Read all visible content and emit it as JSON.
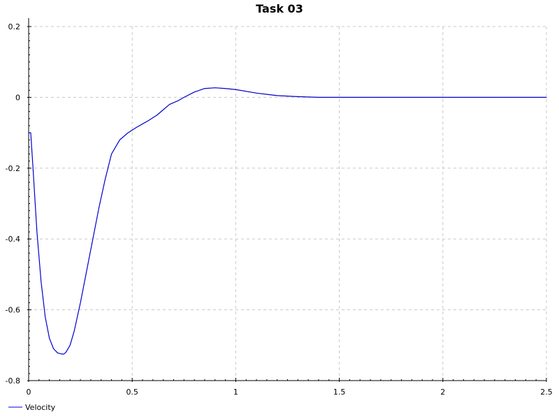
{
  "chart_data": {
    "type": "line",
    "title": "Task 03",
    "xlabel": "",
    "ylabel": "",
    "xlim": [
      0,
      2.5
    ],
    "ylim": [
      -0.8,
      0.2
    ],
    "x_ticks": [
      0,
      0.5,
      1,
      1.5,
      2,
      2.5
    ],
    "x_tick_labels": [
      "0",
      "0.5",
      "1",
      "1.5",
      "2",
      "2.5"
    ],
    "y_ticks": [
      -0.8,
      -0.6,
      -0.4,
      -0.2,
      0,
      0.2
    ],
    "y_tick_labels": [
      "-0.8",
      "-0.6",
      "-0.4",
      "-0.2",
      "0",
      "0.2"
    ],
    "grid": true,
    "legend_position": "bottom-left",
    "series": [
      {
        "name": "Velocity",
        "color": "#0000cc",
        "x": [
          0,
          0.01,
          0.02,
          0.04,
          0.06,
          0.08,
          0.1,
          0.12,
          0.14,
          0.16,
          0.17,
          0.18,
          0.2,
          0.22,
          0.25,
          0.28,
          0.31,
          0.34,
          0.37,
          0.4,
          0.44,
          0.48,
          0.52,
          0.55,
          0.58,
          0.62,
          0.65,
          0.68,
          0.72,
          0.75,
          0.8,
          0.85,
          0.9,
          0.95,
          1.0,
          1.1,
          1.2,
          1.3,
          1.4,
          1.5,
          1.6,
          1.8,
          2.0,
          2.2,
          2.4,
          2.5
        ],
        "y": [
          -0.1,
          -0.1,
          -0.19,
          -0.38,
          -0.52,
          -0.62,
          -0.68,
          -0.71,
          -0.722,
          -0.725,
          -0.725,
          -0.72,
          -0.7,
          -0.66,
          -0.58,
          -0.49,
          -0.4,
          -0.31,
          -0.23,
          -0.16,
          -0.12,
          -0.1,
          -0.085,
          -0.075,
          -0.065,
          -0.05,
          -0.035,
          -0.02,
          -0.01,
          0.0,
          0.015,
          0.025,
          0.027,
          0.025,
          0.022,
          0.012,
          0.005,
          0.002,
          0.0,
          0.0,
          0.0,
          0.0,
          0.0,
          0.0,
          0.0,
          0.0
        ]
      }
    ]
  }
}
